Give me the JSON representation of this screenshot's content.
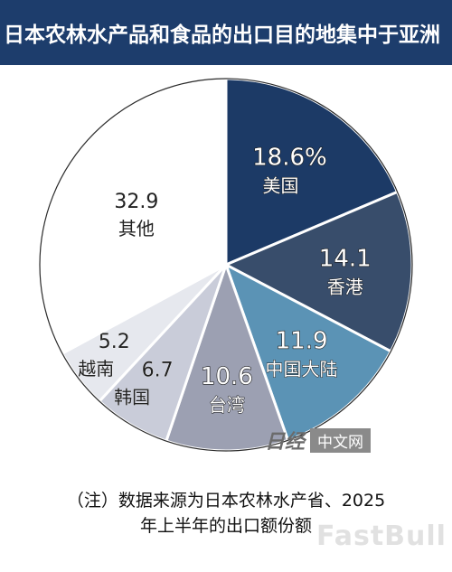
{
  "header": {
    "title": "日本农林水产品和食品的出口目的地集中于亚洲"
  },
  "chart_data": {
    "type": "pie",
    "title": "日本农林水产品和食品的出口目的地集中于亚洲",
    "slices": [
      {
        "label": "美国",
        "value": 18.6,
        "display": "18.6%",
        "color": "#1c3a66"
      },
      {
        "label": "香港",
        "value": 14.1,
        "display": "14.1",
        "color": "#384d6b"
      },
      {
        "label": "中国大陆",
        "value": 11.9,
        "display": "11.9",
        "color": "#5b93b5"
      },
      {
        "label": "台湾",
        "value": 10.6,
        "display": "10.6",
        "color": "#9ca0b2"
      },
      {
        "label": "韩国",
        "value": 6.7,
        "display": "6.7",
        "color": "#c9ccd9"
      },
      {
        "label": "越南",
        "value": 5.2,
        "display": "5.2",
        "color": "#e6e8ee"
      },
      {
        "label": "其他",
        "value": 32.9,
        "display": "32.9",
        "color": "#ffffff"
      }
    ],
    "start": "12 o'clock",
    "direction": "clockwise"
  },
  "watermark": {
    "logo": "日经",
    "label": "中文网",
    "faint": "FastBull"
  },
  "footer": {
    "note_line1": "（注）数据来源为日本农林水产省、2025",
    "note_line2": "年上半年的出口额份额"
  }
}
